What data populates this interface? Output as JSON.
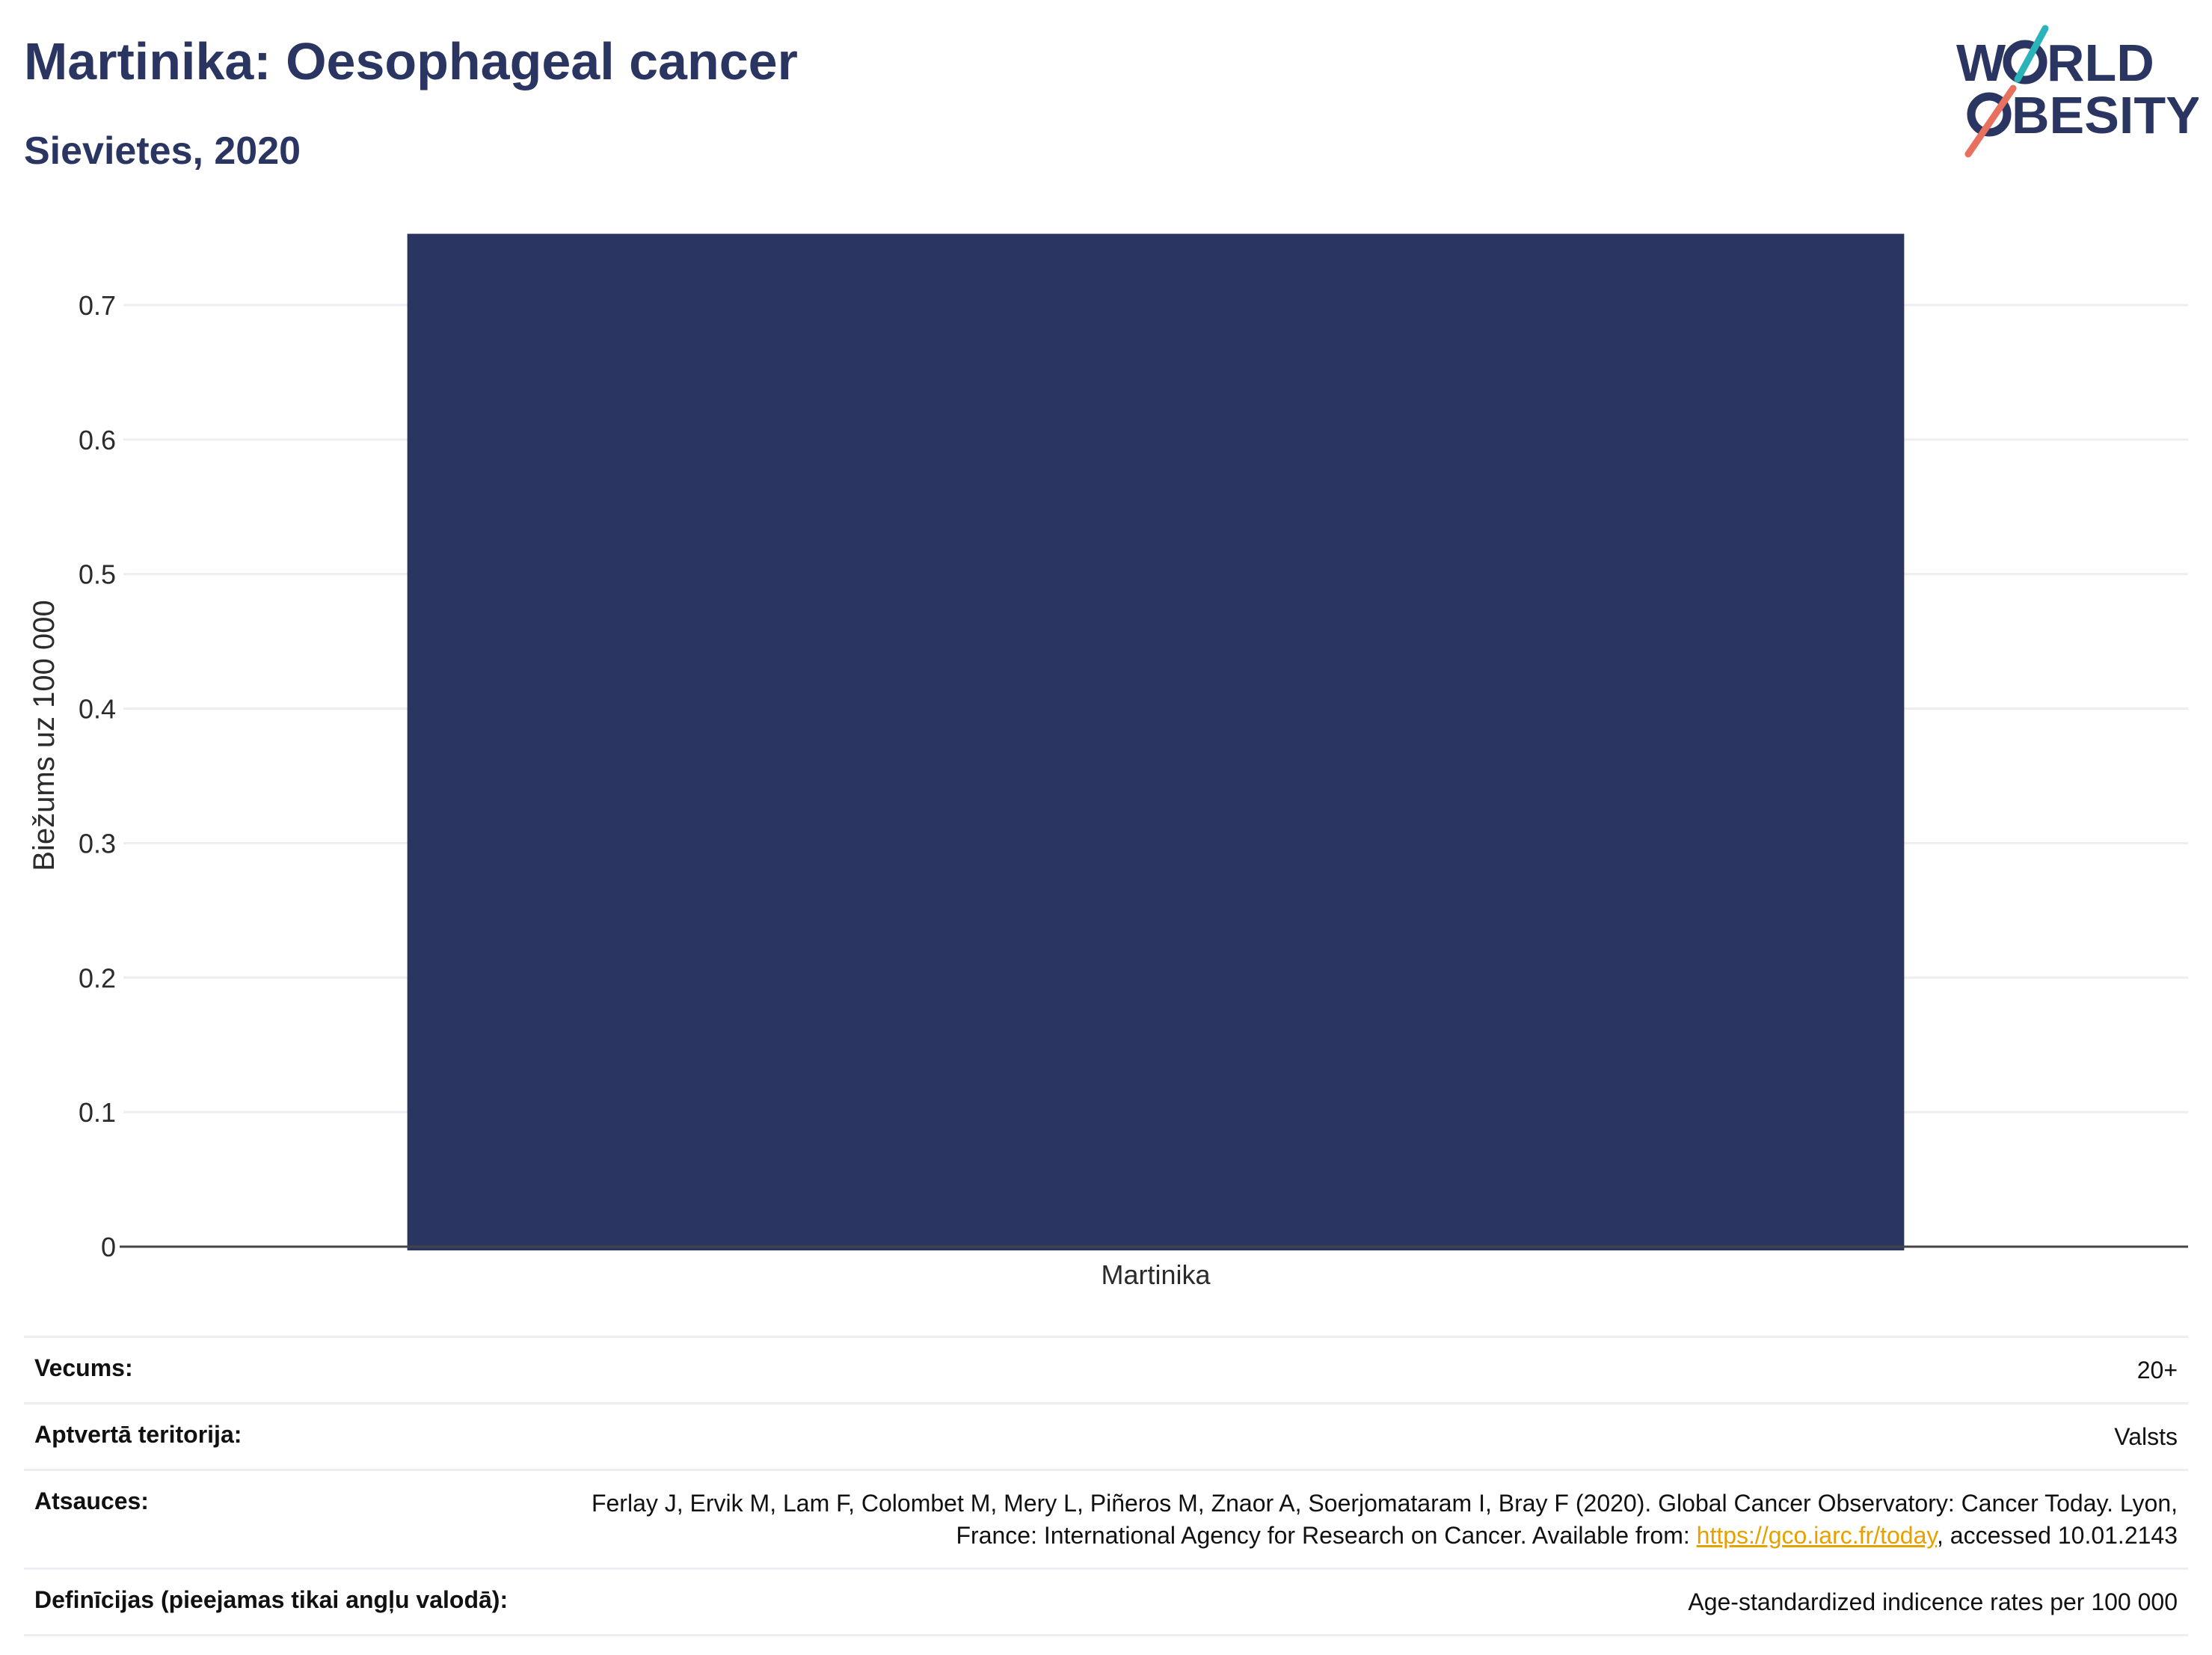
{
  "header": {
    "title": "Martinika: Oesophageal cancer",
    "subtitle": "Sievietes, 2020"
  },
  "logo": {
    "line1": "W",
    "line1b": "RLD",
    "line2": "BESITY",
    "icon": "world-obesity-logo"
  },
  "chart_data": {
    "type": "bar",
    "categories": [
      "Martinika"
    ],
    "values": [
      0.753
    ],
    "ylabel": "Biežums uz 100 000",
    "ylim": [
      0,
      0.76
    ],
    "yticks": [
      "0",
      "0.1",
      "0.2",
      "0.3",
      "0.4",
      "0.5",
      "0.6",
      "0.7"
    ],
    "grid": true,
    "bar_color": "#2a3661"
  },
  "info": {
    "age_label": "Vecums:",
    "age_value": "20+",
    "coverage_label": "Aptvertā teritorija:",
    "coverage_value": "Valsts",
    "refs_label": "Atsauces:",
    "refs_text_1": "Ferlay J, Ervik M, Lam F, Colombet M, Mery L, Piñeros M, Znaor A, Soerjomataram I, Bray F (2020). Global Cancer Observatory: Cancer Today. Lyon, France: International Agency for Research on Cancer. Available from: ",
    "refs_link": "https://gco.iarc.fr/today",
    "refs_text_2": ", accessed 10.01.2143",
    "defs_label": "Definīcijas (pieejamas tikai angļu valodā):",
    "defs_value": "Age-standardized indicence rates per 100 000"
  },
  "colors": {
    "primary": "#2a3661",
    "teal": "#2ab3b8",
    "coral": "#e8705f",
    "link": "#e6a100"
  }
}
